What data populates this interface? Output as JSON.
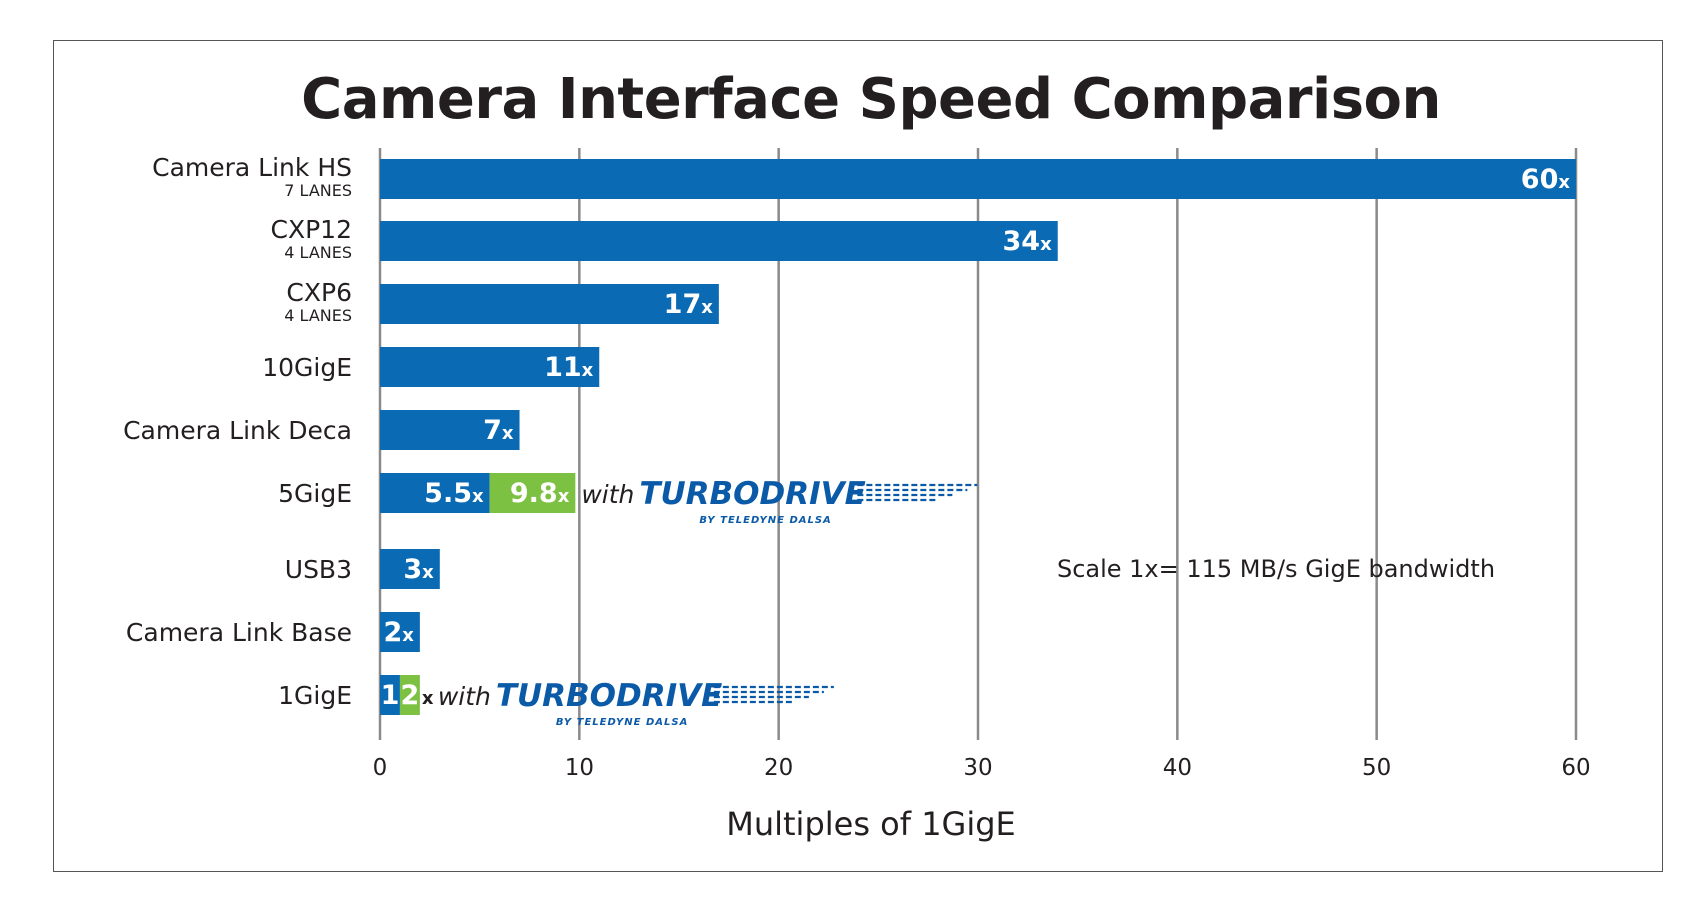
{
  "chart_data": {
    "type": "bar",
    "orientation": "horizontal",
    "title": "Camera Interface Speed Comparison",
    "xlabel": "Multiples of 1GigE",
    "ylabel": "",
    "xlim": [
      0,
      60
    ],
    "xticks": [
      0,
      10,
      20,
      30,
      40,
      50,
      60
    ],
    "grid": "vertical",
    "note": "Scale 1x= 115 MB/s GigE bandwidth",
    "unit_suffix": "x",
    "colors": {
      "standard": "#0a6ab4",
      "turbodrive": "#7cc142"
    },
    "categories": [
      {
        "label": "Camera Link HS",
        "sublabel": "7 LANES",
        "value": 60,
        "value_label": "60"
      },
      {
        "label": "CXP12",
        "sublabel": "4 LANES",
        "value": 34,
        "value_label": "34"
      },
      {
        "label": "CXP6",
        "sublabel": "4 LANES",
        "value": 17,
        "value_label": "17"
      },
      {
        "label": "10GigE",
        "value": 11,
        "value_label": "11"
      },
      {
        "label": "Camera Link Deca",
        "value": 7,
        "value_label": "7"
      },
      {
        "label": "5GigE",
        "value": 5.5,
        "value_label": "5.5",
        "turbo_value": 9.8,
        "turbo_label": "9.8"
      },
      {
        "label": "USB3",
        "value": 3,
        "value_label": "3"
      },
      {
        "label": "Camera Link Base",
        "value": 2,
        "value_label": "2"
      },
      {
        "label": "1GigE",
        "value": 1,
        "value_label": "1",
        "turbo_value": 2,
        "turbo_label": "2"
      }
    ],
    "turbodrive_badge": {
      "with": "with",
      "brand": "TURBODRIVE",
      "by": "BY TELEDYNE DALSA"
    }
  }
}
